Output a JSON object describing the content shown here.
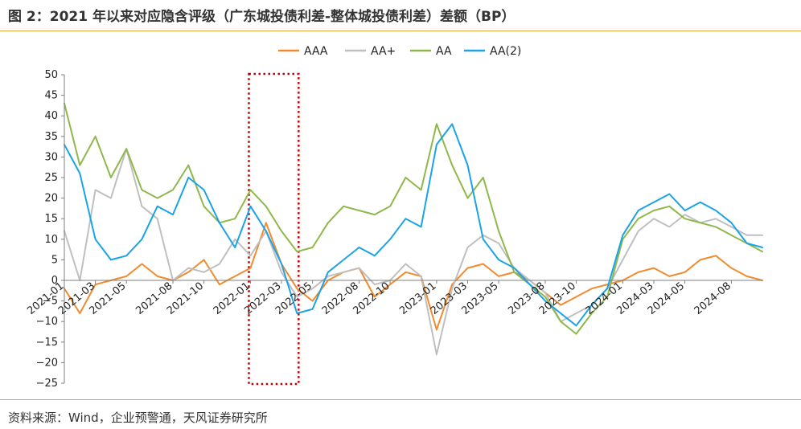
{
  "figure": {
    "title": "图 2：2021 年以来对应隐含评级（广东城投债利差-整体城投债利差）差额（BP）",
    "source": "资料来源：Wind，企业预警通，天风证券研究所"
  },
  "colors": {
    "accent_rule": "#e3a33f",
    "AAA": "#f28a2e",
    "AA+": "#bfbfbf",
    "AA": "#8fb84a",
    "AA(2)": "#1aa3e8",
    "highlight_box": "#c00000"
  },
  "chart_data": {
    "type": "line",
    "title": "",
    "xlabel": "",
    "ylabel": "",
    "ylim": [
      -25,
      50
    ],
    "yticks": [
      -25,
      -20,
      -15,
      -10,
      -5,
      0,
      5,
      10,
      15,
      20,
      25,
      30,
      35,
      40,
      45,
      50
    ],
    "xlim": [
      "2021-01",
      "2024-10"
    ],
    "xticks": [
      "2021-01",
      "2021-03",
      "2021-05",
      "2021-08",
      "2021-10",
      "2022-01",
      "2022-03",
      "2022-05",
      "2022-08",
      "2022-10",
      "2023-01",
      "2023-03",
      "2023-05",
      "2023-08",
      "2023-10",
      "2024-01",
      "2024-03",
      "2024-05",
      "2024-08"
    ],
    "legend_position": "top",
    "grid": false,
    "highlight_range": [
      "2022-01",
      "2022-04"
    ],
    "x": [
      "2021-01",
      "2021-02",
      "2021-03",
      "2021-04",
      "2021-05",
      "2021-06",
      "2021-07",
      "2021-08",
      "2021-09",
      "2021-10",
      "2021-11",
      "2021-12",
      "2022-01",
      "2022-02",
      "2022-03",
      "2022-04",
      "2022-05",
      "2022-06",
      "2022-07",
      "2022-08",
      "2022-09",
      "2022-10",
      "2022-11",
      "2022-12",
      "2023-01",
      "2023-02",
      "2023-03",
      "2023-04",
      "2023-05",
      "2023-06",
      "2023-07",
      "2023-08",
      "2023-09",
      "2023-10",
      "2023-11",
      "2023-12",
      "2024-01",
      "2024-02",
      "2024-03",
      "2024-04",
      "2024-05",
      "2024-06",
      "2024-07",
      "2024-08",
      "2024-09",
      "2024-10"
    ],
    "series": [
      {
        "name": "AAA",
        "values": [
          -2,
          -8,
          -1,
          0,
          1,
          4,
          1,
          0,
          2,
          5,
          -1,
          1,
          3,
          14,
          4,
          -2,
          -5,
          0,
          2,
          3,
          -4,
          -1,
          2,
          1,
          -12,
          -1,
          3,
          4,
          1,
          2,
          0,
          -3,
          -6,
          -4,
          -2,
          -1,
          0,
          2,
          3,
          1,
          2,
          5,
          6,
          3,
          1,
          0
        ]
      },
      {
        "name": "AA+",
        "values": [
          12,
          0,
          22,
          20,
          32,
          18,
          15,
          0,
          3,
          2,
          4,
          10,
          6,
          12,
          2,
          -4,
          -2,
          1,
          2,
          3,
          -1,
          0,
          4,
          1,
          -18,
          -2,
          8,
          11,
          9,
          3,
          0,
          -3,
          -10,
          -8,
          -6,
          -2,
          5,
          12,
          15,
          13,
          16,
          14,
          15,
          13,
          11,
          11
        ]
      },
      {
        "name": "AA",
        "values": [
          43,
          28,
          35,
          25,
          32,
          22,
          20,
          22,
          28,
          18,
          14,
          15,
          22,
          18,
          12,
          7,
          8,
          14,
          18,
          17,
          16,
          18,
          25,
          22,
          38,
          28,
          20,
          25,
          12,
          2,
          -1,
          -4,
          -10,
          -13,
          -8,
          -4,
          10,
          15,
          17,
          18,
          15,
          14,
          13,
          11,
          9,
          7
        ]
      },
      {
        "name": "AA(2)",
        "values": [
          33,
          26,
          10,
          5,
          6,
          10,
          18,
          16,
          25,
          22,
          14,
          8,
          18,
          12,
          4,
          -8,
          -7,
          2,
          5,
          8,
          6,
          10,
          15,
          13,
          33,
          38,
          28,
          10,
          5,
          3,
          -1,
          -5,
          -8,
          -11,
          -6,
          -2,
          11,
          17,
          19,
          21,
          17,
          19,
          17,
          14,
          9,
          8
        ]
      }
    ]
  }
}
